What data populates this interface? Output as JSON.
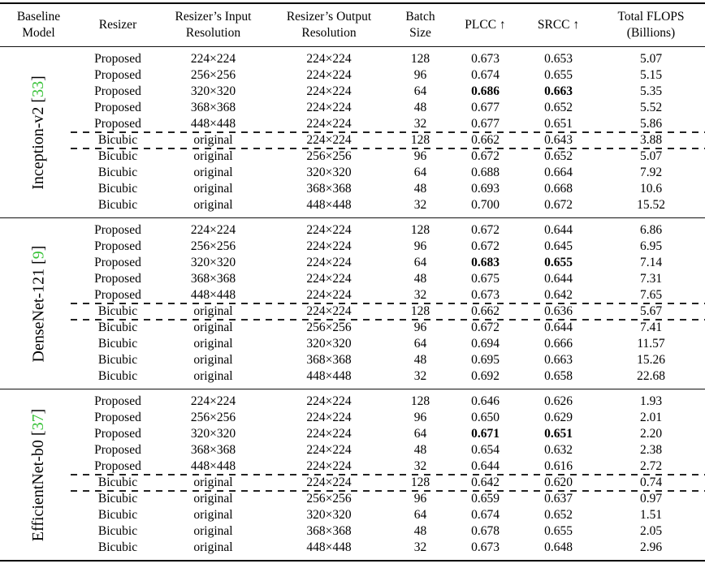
{
  "colors": {
    "citation_link": "#35c135",
    "text": "#000000",
    "rule": "#000000"
  },
  "table": {
    "columns": [
      {
        "line1": "Baseline",
        "line2": "Model"
      },
      {
        "line1": "Resizer",
        "line2": ""
      },
      {
        "line1": "Resizer’s Input",
        "line2": "Resolution"
      },
      {
        "line1": "Resizer’s Output",
        "line2": "Resolution"
      },
      {
        "line1": "Batch",
        "line2": "Size"
      },
      {
        "line1": "PLCC ↑",
        "line2": ""
      },
      {
        "line1": "SRCC ↑",
        "line2": ""
      },
      {
        "line1": "Total FLOPS",
        "line2": "(Billions)"
      }
    ],
    "sections": [
      {
        "model": "Inception-v2 ",
        "cite_open": "[",
        "cite_num": "33",
        "cite_close": "]",
        "rows": [
          {
            "resizer": "Proposed",
            "input": "224×224",
            "output": "224×224",
            "batch": "128",
            "plcc": "0.673",
            "srcc": "0.653",
            "flops": "5.07",
            "best": false
          },
          {
            "resizer": "Proposed",
            "input": "256×256",
            "output": "224×224",
            "batch": "96",
            "plcc": "0.674",
            "srcc": "0.655",
            "flops": "5.15",
            "best": false
          },
          {
            "resizer": "Proposed",
            "input": "320×320",
            "output": "224×224",
            "batch": "64",
            "plcc": "0.686",
            "srcc": "0.663",
            "flops": "5.35",
            "best": true
          },
          {
            "resizer": "Proposed",
            "input": "368×368",
            "output": "224×224",
            "batch": "48",
            "plcc": "0.677",
            "srcc": "0.652",
            "flops": "5.52",
            "best": false
          },
          {
            "resizer": "Proposed",
            "input": "448×448",
            "output": "224×224",
            "batch": "32",
            "plcc": "0.677",
            "srcc": "0.651",
            "flops": "5.86",
            "best": false
          },
          {
            "resizer": "Bicubic",
            "input": "original",
            "output": "224×224",
            "batch": "128",
            "plcc": "0.662",
            "srcc": "0.643",
            "flops": "3.88",
            "best": false
          },
          {
            "resizer": "Bicubic",
            "input": "original",
            "output": "256×256",
            "batch": "96",
            "plcc": "0.672",
            "srcc": "0.652",
            "flops": "5.07",
            "best": false
          },
          {
            "resizer": "Bicubic",
            "input": "original",
            "output": "320×320",
            "batch": "64",
            "plcc": "0.688",
            "srcc": "0.664",
            "flops": "7.92",
            "best": false
          },
          {
            "resizer": "Bicubic",
            "input": "original",
            "output": "368×368",
            "batch": "48",
            "plcc": "0.693",
            "srcc": "0.668",
            "flops": "10.6",
            "best": false
          },
          {
            "resizer": "Bicubic",
            "input": "original",
            "output": "448×448",
            "batch": "32",
            "plcc": "0.700",
            "srcc": "0.672",
            "flops": "15.52",
            "best": false
          }
        ]
      },
      {
        "model": "DenseNet-121 ",
        "cite_open": "[",
        "cite_num": "9",
        "cite_close": "]",
        "rows": [
          {
            "resizer": "Proposed",
            "input": "224×224",
            "output": "224×224",
            "batch": "128",
            "plcc": "0.672",
            "srcc": "0.644",
            "flops": "6.86",
            "best": false
          },
          {
            "resizer": "Proposed",
            "input": "256×256",
            "output": "224×224",
            "batch": "96",
            "plcc": "0.672",
            "srcc": "0.645",
            "flops": "6.95",
            "best": false
          },
          {
            "resizer": "Proposed",
            "input": "320×320",
            "output": "224×224",
            "batch": "64",
            "plcc": "0.683",
            "srcc": "0.655",
            "flops": "7.14",
            "best": true
          },
          {
            "resizer": "Proposed",
            "input": "368×368",
            "output": "224×224",
            "batch": "48",
            "plcc": "0.675",
            "srcc": "0.644",
            "flops": "7.31",
            "best": false
          },
          {
            "resizer": "Proposed",
            "input": "448×448",
            "output": "224×224",
            "batch": "32",
            "plcc": "0.673",
            "srcc": "0.642",
            "flops": "7.65",
            "best": false
          },
          {
            "resizer": "Bicubic",
            "input": "original",
            "output": "224×224",
            "batch": "128",
            "plcc": "0.662",
            "srcc": "0.636",
            "flops": "5.67",
            "best": false
          },
          {
            "resizer": "Bicubic",
            "input": "original",
            "output": "256×256",
            "batch": "96",
            "plcc": "0.672",
            "srcc": "0.644",
            "flops": "7.41",
            "best": false
          },
          {
            "resizer": "Bicubic",
            "input": "original",
            "output": "320×320",
            "batch": "64",
            "plcc": "0.694",
            "srcc": "0.666",
            "flops": "11.57",
            "best": false
          },
          {
            "resizer": "Bicubic",
            "input": "original",
            "output": "368×368",
            "batch": "48",
            "plcc": "0.695",
            "srcc": "0.663",
            "flops": "15.26",
            "best": false
          },
          {
            "resizer": "Bicubic",
            "input": "original",
            "output": "448×448",
            "batch": "32",
            "plcc": "0.692",
            "srcc": "0.658",
            "flops": "22.68",
            "best": false
          }
        ]
      },
      {
        "model": "EfficientNet-b0 ",
        "cite_open": "[",
        "cite_num": "37",
        "cite_close": "]",
        "rows": [
          {
            "resizer": "Proposed",
            "input": "224×224",
            "output": "224×224",
            "batch": "128",
            "plcc": "0.646",
            "srcc": "0.626",
            "flops": "1.93",
            "best": false
          },
          {
            "resizer": "Proposed",
            "input": "256×256",
            "output": "224×224",
            "batch": "96",
            "plcc": "0.650",
            "srcc": "0.629",
            "flops": "2.01",
            "best": false
          },
          {
            "resizer": "Proposed",
            "input": "320×320",
            "output": "224×224",
            "batch": "64",
            "plcc": "0.671",
            "srcc": "0.651",
            "flops": "2.20",
            "best": true
          },
          {
            "resizer": "Proposed",
            "input": "368×368",
            "output": "224×224",
            "batch": "48",
            "plcc": "0.654",
            "srcc": "0.632",
            "flops": "2.38",
            "best": false
          },
          {
            "resizer": "Proposed",
            "input": "448×448",
            "output": "224×224",
            "batch": "32",
            "plcc": "0.644",
            "srcc": "0.616",
            "flops": "2.72",
            "best": false
          },
          {
            "resizer": "Bicubic",
            "input": "original",
            "output": "224×224",
            "batch": "128",
            "plcc": "0.642",
            "srcc": "0.620",
            "flops": "0.74",
            "best": false
          },
          {
            "resizer": "Bicubic",
            "input": "original",
            "output": "256×256",
            "batch": "96",
            "plcc": "0.659",
            "srcc": "0.637",
            "flops": "0.97",
            "best": false
          },
          {
            "resizer": "Bicubic",
            "input": "original",
            "output": "320×320",
            "batch": "64",
            "plcc": "0.674",
            "srcc": "0.652",
            "flops": "1.51",
            "best": false
          },
          {
            "resizer": "Bicubic",
            "input": "original",
            "output": "368×368",
            "batch": "48",
            "plcc": "0.678",
            "srcc": "0.655",
            "flops": "2.05",
            "best": false
          },
          {
            "resizer": "Bicubic",
            "input": "original",
            "output": "448×448",
            "batch": "32",
            "plcc": "0.673",
            "srcc": "0.648",
            "flops": "2.96",
            "best": false
          }
        ]
      }
    ]
  }
}
